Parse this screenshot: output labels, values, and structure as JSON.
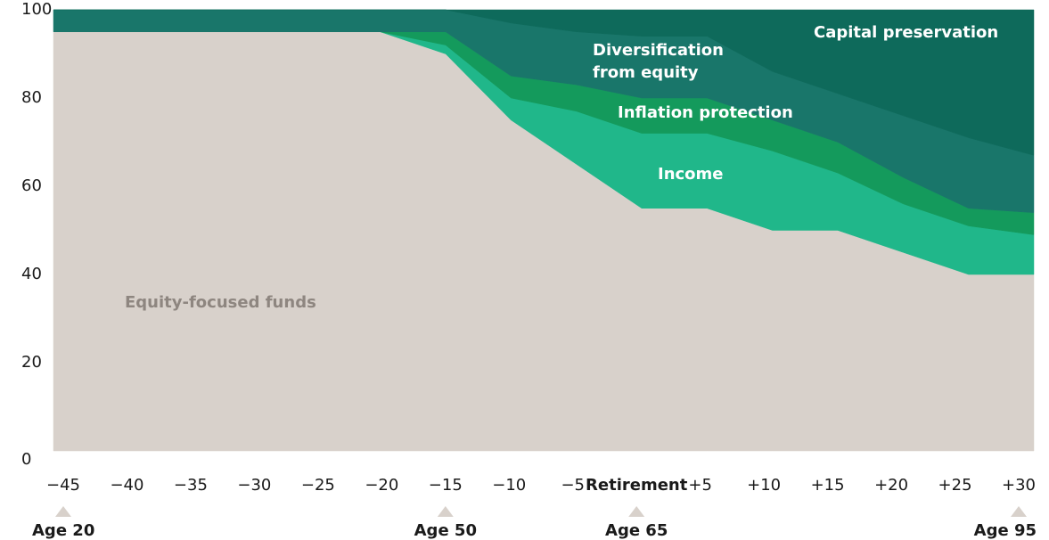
{
  "chart_data": {
    "type": "stacked_area",
    "categories": [
      "−45",
      "−40",
      "−35",
      "−30",
      "−25",
      "−20",
      "−15",
      "−10",
      "−5",
      "Retirement",
      "+5",
      "+10",
      "+15",
      "+20",
      "+25",
      "+30"
    ],
    "age_labels": [
      "Age 20",
      null,
      null,
      null,
      null,
      null,
      "Age 50",
      null,
      null,
      "Age 65",
      null,
      null,
      null,
      null,
      null,
      "Age 95"
    ],
    "series": [
      {
        "name": "Equity-focused funds",
        "color": "#d8d1cb",
        "label_color": "#8e8680",
        "values": [
          95,
          95,
          95,
          95,
          95,
          95,
          90,
          75,
          65,
          55,
          55,
          50,
          50,
          45,
          40,
          40
        ]
      },
      {
        "name": "Income",
        "color": "#20b78a",
        "label_color": "#ffffff",
        "values": [
          0,
          0,
          0,
          0,
          0,
          0,
          2,
          5,
          12,
          17,
          17,
          18,
          13,
          11,
          11,
          9
        ]
      },
      {
        "name": "Inflation protection",
        "color": "#149a5c",
        "label_color": "#ffffff",
        "values": [
          0,
          0,
          0,
          0,
          0,
          0,
          3,
          5,
          6,
          8,
          8,
          7,
          7,
          6,
          4,
          5
        ]
      },
      {
        "name": "Diversification from equity",
        "color": "#19766a",
        "label_color": "#ffffff",
        "values": [
          5,
          5,
          5,
          5,
          5,
          5,
          5,
          12,
          12,
          14,
          14,
          11,
          11,
          14,
          16,
          13
        ]
      },
      {
        "name": "Capital preservation",
        "color": "#0e6a5b",
        "label_color": "#ffffff",
        "values": [
          0,
          0,
          0,
          0,
          0,
          0,
          0,
          3,
          5,
          6,
          6,
          14,
          19,
          24,
          29,
          33
        ]
      }
    ],
    "ylim": [
      0,
      100
    ],
    "yticks": [
      0,
      20,
      40,
      60,
      80,
      100
    ],
    "grid": false
  }
}
